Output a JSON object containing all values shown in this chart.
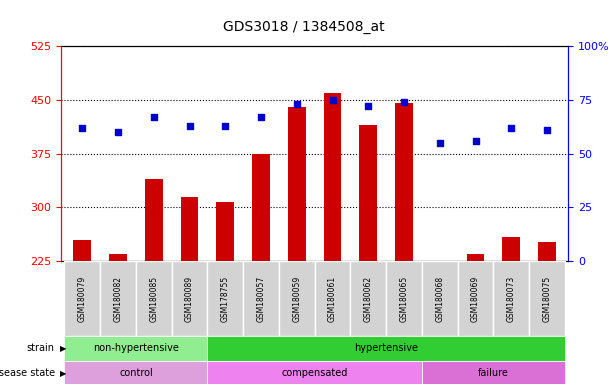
{
  "title": "GDS3018 / 1384508_at",
  "samples": [
    "GSM180079",
    "GSM180082",
    "GSM180085",
    "GSM180089",
    "GSM178755",
    "GSM180057",
    "GSM180059",
    "GSM180061",
    "GSM180062",
    "GSM180065",
    "GSM180068",
    "GSM180069",
    "GSM180073",
    "GSM180075"
  ],
  "counts": [
    255,
    235,
    340,
    315,
    308,
    375,
    440,
    460,
    415,
    445,
    222,
    235,
    258,
    252
  ],
  "percentile_ranks": [
    62,
    60,
    67,
    63,
    63,
    67,
    73,
    75,
    72,
    74,
    55,
    56,
    62,
    61
  ],
  "ylim_left": [
    225,
    525
  ],
  "ylim_right": [
    0,
    100
  ],
  "yticks_left": [
    225,
    300,
    375,
    450,
    525
  ],
  "yticks_right": [
    0,
    25,
    50,
    75,
    100
  ],
  "bar_color": "#cc0000",
  "dot_color": "#0000cc",
  "strain_groups": [
    {
      "label": "non-hypertensive",
      "start": 0,
      "end": 4,
      "color": "#90ee90"
    },
    {
      "label": "hypertensive",
      "start": 4,
      "end": 14,
      "color": "#32cd32"
    }
  ],
  "disease_groups": [
    {
      "label": "control",
      "start": 0,
      "end": 4,
      "color": "#dda0dd"
    },
    {
      "label": "compensated",
      "start": 4,
      "end": 10,
      "color": "#ee82ee"
    },
    {
      "label": "failure",
      "start": 10,
      "end": 14,
      "color": "#da70d6"
    }
  ]
}
